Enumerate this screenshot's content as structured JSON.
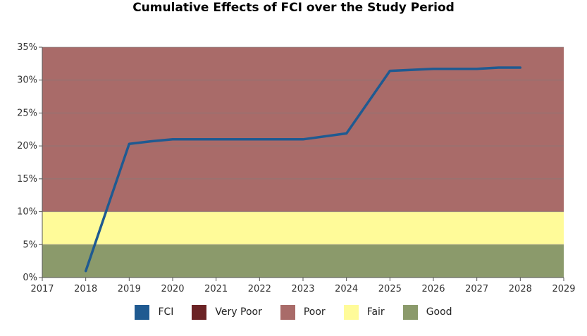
{
  "chart_data": {
    "type": "line",
    "title": "Cumulative Effects of FCI over the Study Period",
    "xlabel": "",
    "ylabel": "",
    "xlim": [
      2017,
      2029
    ],
    "ylim": [
      0,
      35
    ],
    "x_ticks": [
      "2017",
      "2018",
      "2019",
      "2020",
      "2021",
      "2022",
      "2023",
      "2024",
      "2025",
      "2026",
      "2027",
      "2028",
      "2029"
    ],
    "y_ticks": [
      "0%",
      "5%",
      "10%",
      "15%",
      "20%",
      "25%",
      "30%",
      "35%"
    ],
    "y_tick_values": [
      0,
      5,
      10,
      15,
      20,
      25,
      30,
      35
    ],
    "grid": true,
    "legend_position": "bottom",
    "bands": [
      {
        "name": "Good",
        "from": 0,
        "to": 5,
        "color": "#8b9a6b"
      },
      {
        "name": "Fair",
        "from": 5,
        "to": 10,
        "color": "#fffb99"
      },
      {
        "name": "Poor",
        "from": 10,
        "to": 35,
        "color": "#a96b69"
      }
    ],
    "series": [
      {
        "name": "FCI",
        "color": "#1f5a91",
        "x": [
          2018,
          2019,
          2019.5,
          2020,
          2021,
          2022,
          2023,
          2024,
          2025,
          2026,
          2027,
          2027.5,
          2028
        ],
        "values": [
          1,
          20.3,
          20.7,
          21,
          21,
          21,
          21,
          21.9,
          31.4,
          31.7,
          31.7,
          31.9,
          31.9
        ]
      }
    ],
    "legend": [
      {
        "label": "FCI",
        "color": "#1f5a91"
      },
      {
        "label": "Very Poor",
        "color": "#6b2325"
      },
      {
        "label": "Poor",
        "color": "#a96b69"
      },
      {
        "label": "Fair",
        "color": "#fffb99"
      },
      {
        "label": "Good",
        "color": "#8b9a6b"
      }
    ]
  }
}
